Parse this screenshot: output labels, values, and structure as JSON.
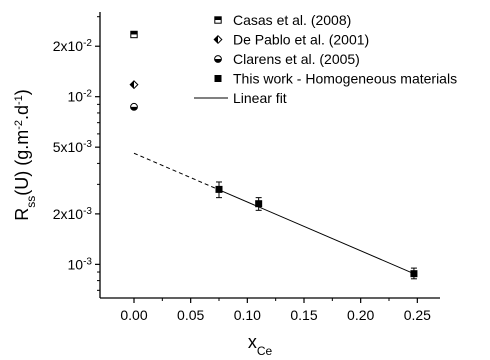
{
  "chart_data": {
    "type": "scatter",
    "xlabel": {
      "main": "x",
      "sub": "Ce"
    },
    "ylabel": "R_ss(U) (g.m^-2.d^-1)",
    "ylabel_parts": {
      "main": "R",
      "sub": "ss",
      "rest1": "(U) (g.m",
      "sup1": "-2",
      "rest2": ".d",
      "sup2": "-1",
      "rest3": ")"
    },
    "xlim": [
      -0.03,
      0.27
    ],
    "ylim": [
      0.00063,
      0.032
    ],
    "yscale": "log",
    "x_ticks": [
      0.0,
      0.05,
      0.1,
      0.15,
      0.2,
      0.25
    ],
    "x_tick_labels": [
      "0.00",
      "0.05",
      "0.10",
      "0.15",
      "0.20",
      "0.25"
    ],
    "y_ticks": [
      0.001,
      0.002,
      0.005,
      0.01,
      0.02
    ],
    "y_tick_labels": [
      {
        "base": "10",
        "exp": "-3"
      },
      {
        "base": "2x10",
        "exp": "-3"
      },
      {
        "base": "5x10",
        "exp": "-3"
      },
      {
        "base": "10",
        "exp": "-2"
      },
      {
        "base": "2x10",
        "exp": "-2"
      }
    ],
    "legend_position": "top-right",
    "series": [
      {
        "name": "Casas et al. (2008)",
        "marker": "square-half-top",
        "points": [
          [
            0.0,
            0.0235
          ]
        ]
      },
      {
        "name": "De Pablo et al. (2001)",
        "marker": "diamond-half-left",
        "points": [
          [
            0.0,
            0.0118
          ]
        ]
      },
      {
        "name": "Clarens et al. (2005)",
        "marker": "circle-half-bottom",
        "points": [
          [
            0.0,
            0.0087
          ]
        ]
      },
      {
        "name": "This work - Homogeneous materials",
        "marker": "square-filled",
        "points": [
          [
            0.075,
            0.0028
          ],
          [
            0.11,
            0.0023
          ],
          [
            0.247,
            0.00088
          ]
        ],
        "errors": [
          [
            0.0025,
            0.0031
          ],
          [
            0.0021,
            0.0025
          ],
          [
            0.00082,
            0.00095
          ]
        ]
      }
    ],
    "fit": {
      "name": "Linear fit",
      "x_start": 0.0,
      "y_start": 0.0046,
      "x_solid_from": 0.075,
      "x_end": 0.247,
      "y_end": 0.00088
    }
  }
}
